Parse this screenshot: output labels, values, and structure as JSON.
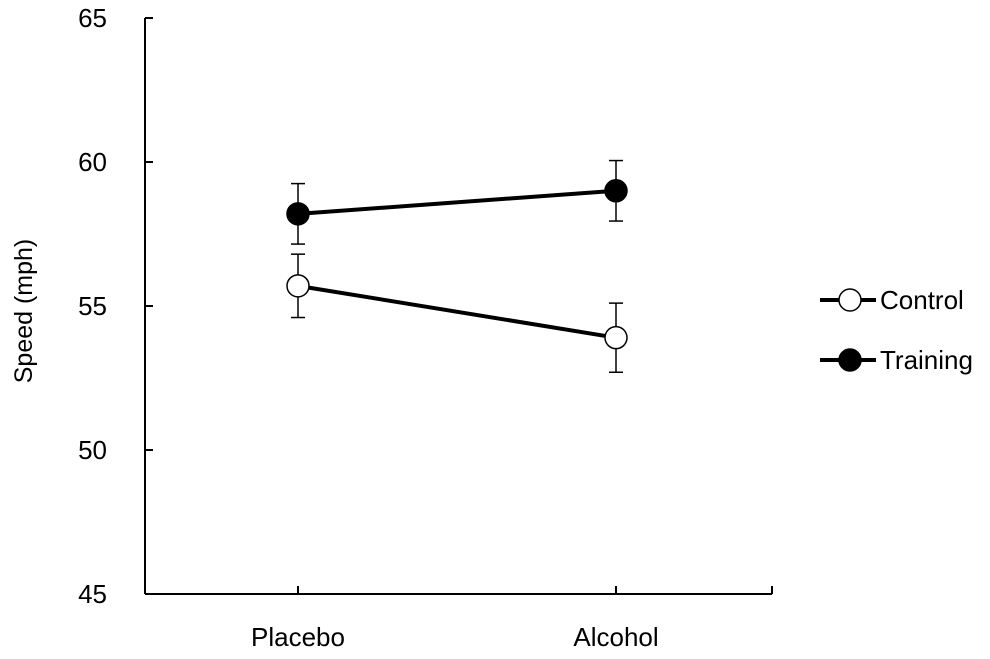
{
  "chart_data": {
    "type": "line",
    "ylabel": "Speed (mph)",
    "xlabel": "",
    "ylim": [
      45,
      65
    ],
    "yticks": [
      45,
      50,
      55,
      60,
      65
    ],
    "categories": [
      "Placebo",
      "Alcohol"
    ],
    "grid": false,
    "legend_position": "right",
    "series": [
      {
        "name": "Control",
        "marker": "open-circle",
        "values": [
          55.7,
          53.9
        ],
        "error": [
          1.1,
          1.2
        ],
        "color": "#000000"
      },
      {
        "name": "Training",
        "marker": "filled-circle",
        "values": [
          58.2,
          59.0
        ],
        "error": [
          1.05,
          1.05
        ],
        "color": "#000000"
      }
    ]
  }
}
